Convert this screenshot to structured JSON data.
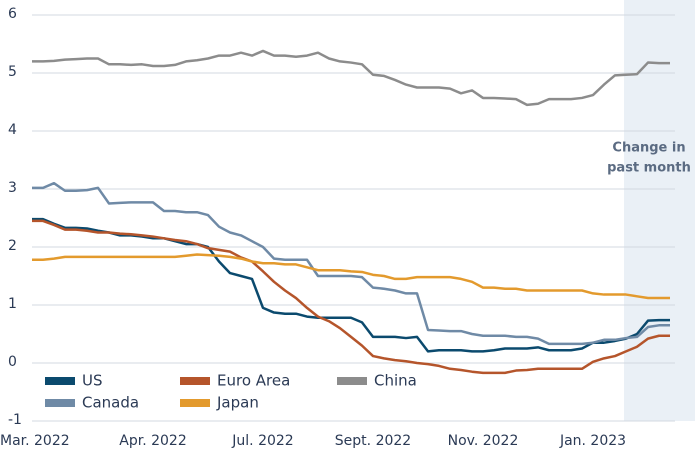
{
  "chart_data": {
    "type": "line",
    "annotation": [
      "Change in",
      "past month"
    ],
    "categories": [
      null,
      "Mar. 2022",
      null,
      null,
      null,
      null,
      null,
      null,
      null,
      null,
      null,
      "Apr. 2022",
      null,
      null,
      null,
      null,
      null,
      null,
      null,
      null,
      null,
      "Jul. 2022",
      null,
      null,
      null,
      null,
      null,
      null,
      null,
      null,
      null,
      "Sept. 2022",
      null,
      null,
      null,
      null,
      null,
      null,
      null,
      null,
      null,
      "Nov. 2022",
      null,
      null,
      null,
      null,
      null,
      null,
      null,
      null,
      null,
      "Jan. 2023",
      null,
      null,
      null,
      null,
      null,
      null,
      null
    ],
    "series": [
      {
        "name": "US",
        "color": "#0b4a6e",
        "values": [
          2.48,
          2.48,
          2.4,
          2.33,
          2.33,
          2.32,
          2.28,
          2.25,
          2.2,
          2.2,
          2.18,
          2.15,
          2.15,
          2.1,
          2.05,
          2.05,
          2.0,
          1.75,
          1.55,
          1.5,
          1.45,
          0.95,
          0.87,
          0.85,
          0.85,
          0.8,
          0.78,
          0.78,
          0.78,
          0.78,
          0.7,
          0.45,
          0.45,
          0.45,
          0.43,
          0.45,
          0.2,
          0.22,
          0.22,
          0.22,
          0.2,
          0.2,
          0.22,
          0.25,
          0.25,
          0.25,
          0.27,
          0.22,
          0.22,
          0.22,
          0.25,
          0.35,
          0.35,
          0.38,
          0.42,
          0.5,
          0.73,
          0.74,
          0.74
        ]
      },
      {
        "name": "Euro Area",
        "color": "#b5552b",
        "values": [
          2.45,
          2.45,
          2.38,
          2.3,
          2.3,
          2.28,
          2.25,
          2.25,
          2.23,
          2.22,
          2.2,
          2.18,
          2.15,
          2.12,
          2.1,
          2.05,
          1.98,
          1.95,
          1.92,
          1.82,
          1.75,
          1.58,
          1.4,
          1.25,
          1.12,
          0.95,
          0.8,
          0.72,
          0.6,
          0.45,
          0.3,
          0.12,
          0.08,
          0.05,
          0.03,
          0.0,
          -0.02,
          -0.05,
          -0.1,
          -0.12,
          -0.15,
          -0.17,
          -0.17,
          -0.17,
          -0.13,
          -0.12,
          -0.1,
          -0.1,
          -0.1,
          -0.1,
          -0.1,
          0.02,
          0.08,
          0.12,
          0.2,
          0.28,
          0.42,
          0.47,
          0.47
        ]
      },
      {
        "name": "China",
        "color": "#8c8c8c",
        "values": [
          5.2,
          5.2,
          5.21,
          5.23,
          5.24,
          5.25,
          5.25,
          5.15,
          5.15,
          5.14,
          5.15,
          5.12,
          5.12,
          5.14,
          5.2,
          5.22,
          5.25,
          5.3,
          5.3,
          5.35,
          5.3,
          5.38,
          5.3,
          5.3,
          5.28,
          5.3,
          5.35,
          5.25,
          5.2,
          5.18,
          5.15,
          4.97,
          4.95,
          4.88,
          4.8,
          4.75,
          4.75,
          4.75,
          4.73,
          4.65,
          4.7,
          4.57,
          4.57,
          4.56,
          4.55,
          4.45,
          4.47,
          4.55,
          4.55,
          4.55,
          4.57,
          4.62,
          4.8,
          4.96,
          4.97,
          4.98,
          5.18,
          5.17,
          5.17
        ]
      },
      {
        "name": "Canada",
        "color": "#6f8aa6",
        "values": [
          3.02,
          3.02,
          3.1,
          2.97,
          2.97,
          2.98,
          3.02,
          2.75,
          2.76,
          2.77,
          2.77,
          2.77,
          2.62,
          2.62,
          2.6,
          2.6,
          2.55,
          2.35,
          2.25,
          2.2,
          2.1,
          2.0,
          1.8,
          1.78,
          1.78,
          1.78,
          1.5,
          1.5,
          1.5,
          1.5,
          1.48,
          1.3,
          1.28,
          1.25,
          1.2,
          1.2,
          0.57,
          0.56,
          0.55,
          0.55,
          0.5,
          0.47,
          0.47,
          0.47,
          0.45,
          0.45,
          0.42,
          0.33,
          0.33,
          0.33,
          0.33,
          0.35,
          0.4,
          0.4,
          0.43,
          0.45,
          0.62,
          0.65,
          0.65
        ]
      },
      {
        "name": "Japan",
        "color": "#e39a2d",
        "values": [
          1.78,
          1.78,
          1.8,
          1.83,
          1.83,
          1.83,
          1.83,
          1.83,
          1.83,
          1.83,
          1.83,
          1.83,
          1.83,
          1.83,
          1.85,
          1.87,
          1.86,
          1.85,
          1.83,
          1.8,
          1.75,
          1.72,
          1.72,
          1.7,
          1.7,
          1.65,
          1.6,
          1.6,
          1.6,
          1.58,
          1.57,
          1.52,
          1.5,
          1.45,
          1.45,
          1.48,
          1.48,
          1.48,
          1.48,
          1.45,
          1.4,
          1.3,
          1.3,
          1.28,
          1.28,
          1.25,
          1.25,
          1.25,
          1.25,
          1.25,
          1.25,
          1.2,
          1.18,
          1.18,
          1.18,
          1.15,
          1.12,
          1.12,
          1.12
        ]
      }
    ],
    "ylim": [
      -1,
      6
    ],
    "yticks": [
      -1,
      0,
      1,
      2,
      3,
      4,
      5,
      6
    ],
    "grid": true
  }
}
